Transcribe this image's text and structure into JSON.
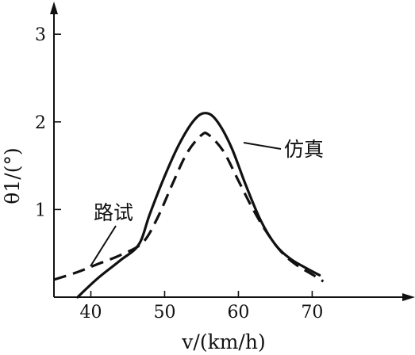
{
  "chart_data": {
    "type": "line",
    "title": "",
    "xlabel": "v/(km/h)",
    "ylabel": "θ1/(°)",
    "xlim": [
      35,
      82
    ],
    "ylim": [
      0,
      3.3
    ],
    "xticks": [
      40,
      50,
      60,
      70
    ],
    "yticks": [
      1,
      2,
      3
    ],
    "grid": false,
    "series": [
      {
        "name": "仿真",
        "style": "solid",
        "x": [
          38.2,
          41,
          44,
          46.5,
          48,
          50,
          52,
          54,
          55.5,
          57,
          59,
          61,
          63,
          65,
          67,
          69,
          71
        ],
        "y": [
          0.0,
          0.22,
          0.42,
          0.6,
          0.95,
          1.38,
          1.75,
          2.02,
          2.1,
          2.02,
          1.72,
          1.28,
          0.88,
          0.6,
          0.44,
          0.34,
          0.25
        ]
      },
      {
        "name": "路试",
        "style": "dashed",
        "x": [
          35,
          38,
          41,
          44,
          47,
          49,
          51,
          53,
          55,
          56,
          58,
          60,
          62,
          64,
          66,
          68,
          70,
          71.5
        ],
        "y": [
          0.2,
          0.28,
          0.38,
          0.48,
          0.62,
          0.9,
          1.28,
          1.64,
          1.85,
          1.85,
          1.66,
          1.33,
          1.0,
          0.72,
          0.5,
          0.36,
          0.26,
          0.18
        ]
      }
    ]
  }
}
